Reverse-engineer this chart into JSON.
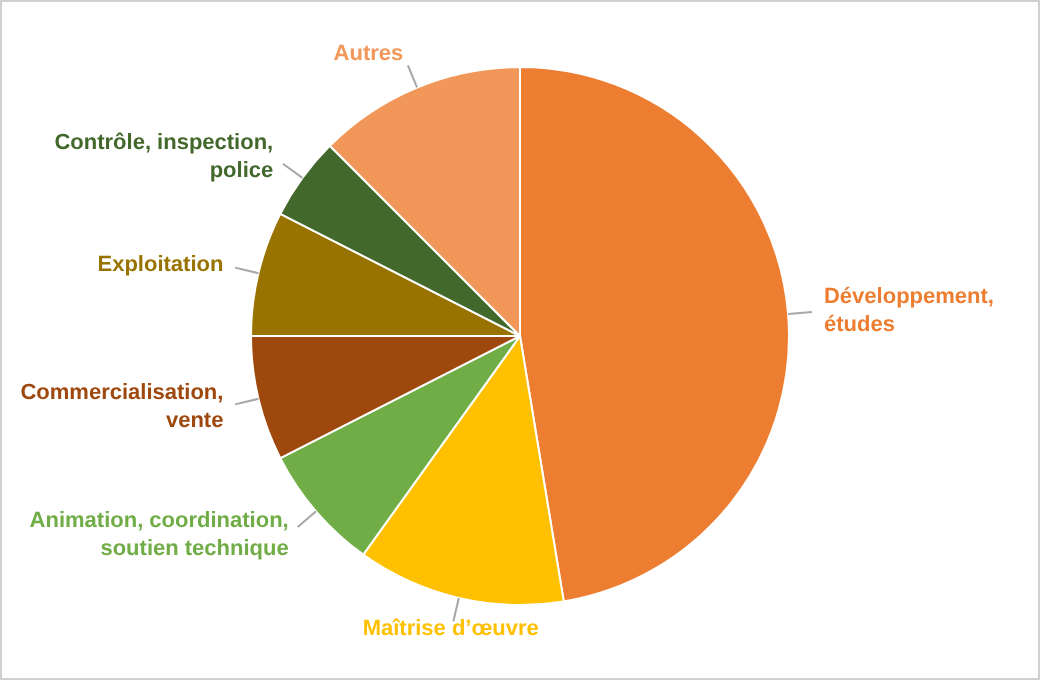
{
  "chart_data": {
    "type": "pie",
    "categories": [
      "Développement, études",
      "Maîtrise d’œuvre",
      "Animation, coordination, soutien technique",
      "Commercialisation, vente",
      "Exploitation",
      "Contrôle, inspection, police",
      "Autres"
    ],
    "values": [
      47.4,
      12.5,
      7.6,
      7.5,
      7.5,
      5,
      12.5
    ],
    "colors": [
      "#ed7d31",
      "#ffc000",
      "#70ad47",
      "#9e480e",
      "#997300",
      "#43682b",
      "#f1975a"
    ],
    "legend": false
  }
}
